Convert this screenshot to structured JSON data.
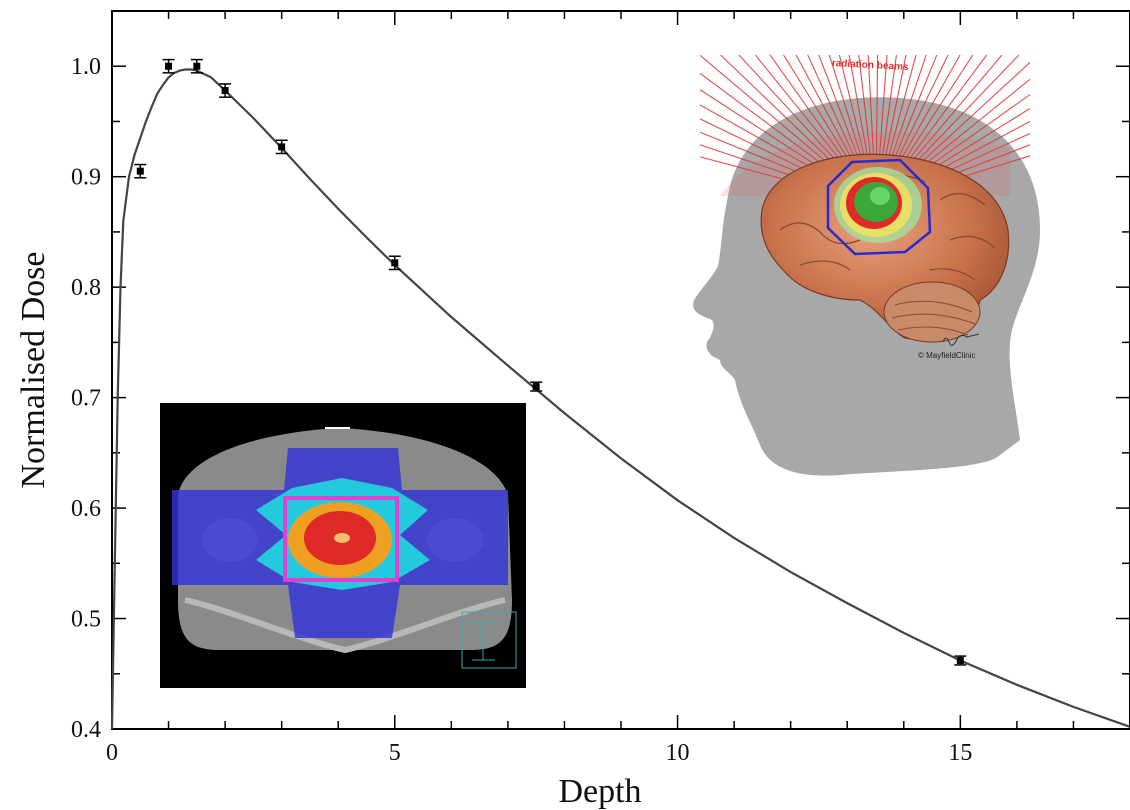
{
  "chart_data": {
    "type": "line",
    "xlabel": "Depth",
    "ylabel": "Normalised Dose",
    "xlim": [
      0,
      18
    ],
    "ylim": [
      0.4,
      1.05
    ],
    "x_ticks": [
      0,
      5,
      10,
      15
    ],
    "x_tick_labels": [
      "0",
      "5",
      "10",
      "15"
    ],
    "y_ticks": [
      0.4,
      0.5,
      0.6,
      0.7,
      0.8,
      0.9,
      1.0
    ],
    "y_tick_labels": [
      "0.4",
      "0.5",
      "0.6",
      "0.7",
      "0.8",
      "0.9",
      "1.0"
    ],
    "grid": false,
    "series": [
      {
        "style": "line",
        "color": "#444444",
        "x": [
          0.0,
          0.05,
          0.1,
          0.15,
          0.2,
          0.3,
          0.4,
          0.5,
          0.6,
          0.7,
          0.8,
          0.9,
          1.0,
          1.1,
          1.2,
          1.3,
          1.4,
          1.5,
          1.75,
          2.0,
          2.5,
          3.0,
          3.5,
          4.0,
          4.5,
          5.0,
          6.0,
          7.0,
          8.0,
          9.0,
          10.0,
          11.0,
          12.0,
          13.0,
          14.0,
          15.0,
          16.0,
          17.0,
          18.0
        ],
        "y": [
          0.4,
          0.55,
          0.7,
          0.8,
          0.86,
          0.9,
          0.92,
          0.935,
          0.95,
          0.963,
          0.975,
          0.983,
          0.99,
          0.994,
          0.996,
          0.997,
          0.997,
          0.996,
          0.99,
          0.978,
          0.953,
          0.926,
          0.898,
          0.871,
          0.845,
          0.82,
          0.773,
          0.729,
          0.686,
          0.645,
          0.607,
          0.573,
          0.542,
          0.514,
          0.487,
          0.462,
          0.44,
          0.42,
          0.402
        ]
      },
      {
        "style": "points_with_errorbars",
        "color": "#000000",
        "x": [
          0.5,
          1.0,
          1.5,
          2.0,
          3.0,
          5.0,
          7.5,
          15.0
        ],
        "y": [
          0.905,
          1.0,
          1.0,
          0.978,
          0.927,
          0.822,
          0.71,
          0.462
        ],
        "err": [
          0.006,
          0.006,
          0.006,
          0.006,
          0.006,
          0.006,
          0.004,
          0.004
        ]
      }
    ]
  },
  "brain_inset": {
    "label": "radiation beams",
    "credit": "© MayfieldClinic",
    "beam_color": "#e03030"
  },
  "ct_inset": {
    "colors": [
      "#3434d8",
      "#22d8e0",
      "#e040d0",
      "#f0a020",
      "#e02a2a"
    ]
  }
}
